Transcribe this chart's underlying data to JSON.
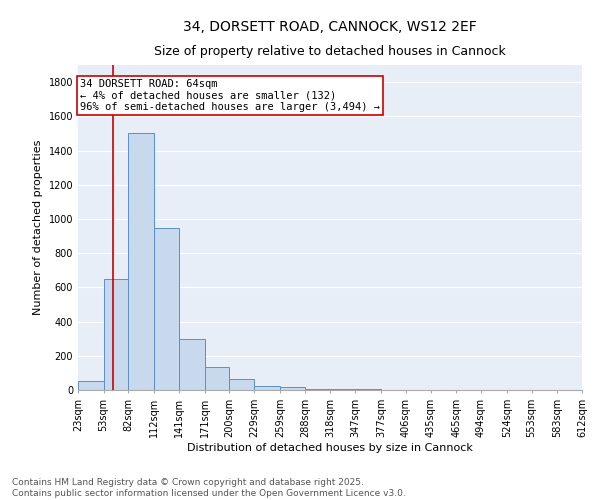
{
  "title_line1": "34, DORSETT ROAD, CANNOCK, WS12 2EF",
  "title_line2": "Size of property relative to detached houses in Cannock",
  "xlabel": "Distribution of detached houses by size in Cannock",
  "ylabel": "Number of detached properties",
  "bin_edges": [
    23,
    53,
    82,
    112,
    141,
    171,
    200,
    229,
    259,
    288,
    318,
    347,
    377,
    406,
    435,
    465,
    494,
    524,
    553,
    583,
    612
  ],
  "bar_heights": [
    50,
    650,
    1500,
    950,
    300,
    135,
    65,
    25,
    15,
    5,
    5,
    5,
    0,
    0,
    0,
    0,
    0,
    0,
    0,
    0
  ],
  "bar_color": "#c8d9ee",
  "bar_edge_color": "#5b8fc9",
  "bar_edge_width": 0.7,
  "property_size": 64,
  "red_line_color": "#cc0000",
  "annotation_text": "34 DORSETT ROAD: 64sqm\n← 4% of detached houses are smaller (132)\n96% of semi-detached houses are larger (3,494) →",
  "annotation_box_color": "white",
  "annotation_box_edge_color": "#cc0000",
  "ylim": [
    0,
    1900
  ],
  "yticks": [
    0,
    200,
    400,
    600,
    800,
    1000,
    1200,
    1400,
    1600,
    1800
  ],
  "bg_color": "#e8eef8",
  "grid_color": "white",
  "footer_text": "Contains HM Land Registry data © Crown copyright and database right 2025.\nContains public sector information licensed under the Open Government Licence v3.0.",
  "title_fontsize": 10,
  "subtitle_fontsize": 9,
  "axis_label_fontsize": 8,
  "tick_fontsize": 7,
  "annotation_fontsize": 7.5,
  "footer_fontsize": 6.5
}
